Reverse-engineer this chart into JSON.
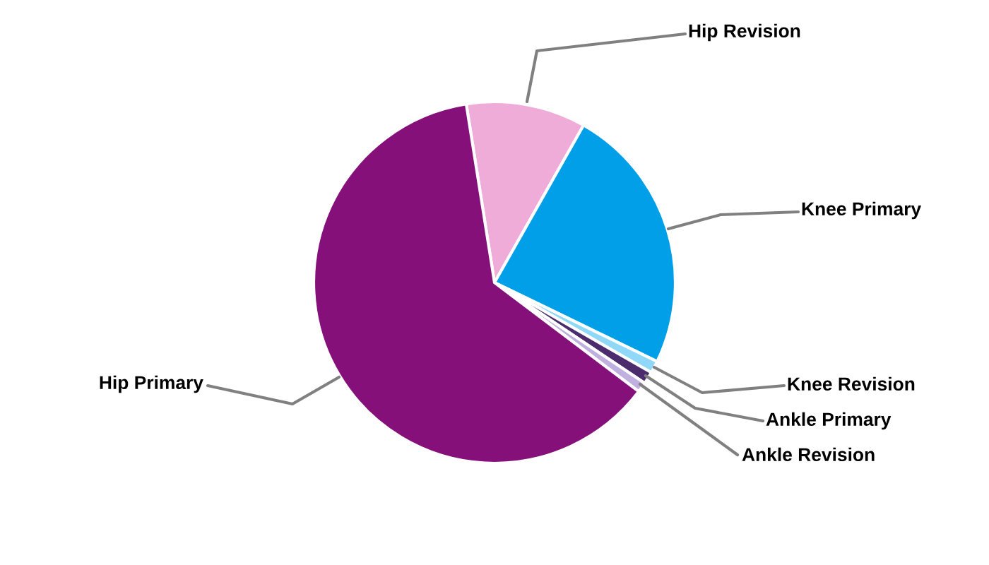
{
  "chart_data": {
    "type": "pie",
    "categories": [
      "Hip Revision",
      "Knee Primary",
      "Knee Revision",
      "Ankle Primary",
      "Ankle Revision",
      "Hip Primary"
    ],
    "values": [
      10.7,
      24.0,
      1.1,
      1.1,
      0.9,
      62.2
    ],
    "colors": [
      "#f0acd8",
      "#009fe8",
      "#8fd8f8",
      "#4b2d6e",
      "#c0b0e0",
      "#85107a"
    ],
    "legend": false
  }
}
